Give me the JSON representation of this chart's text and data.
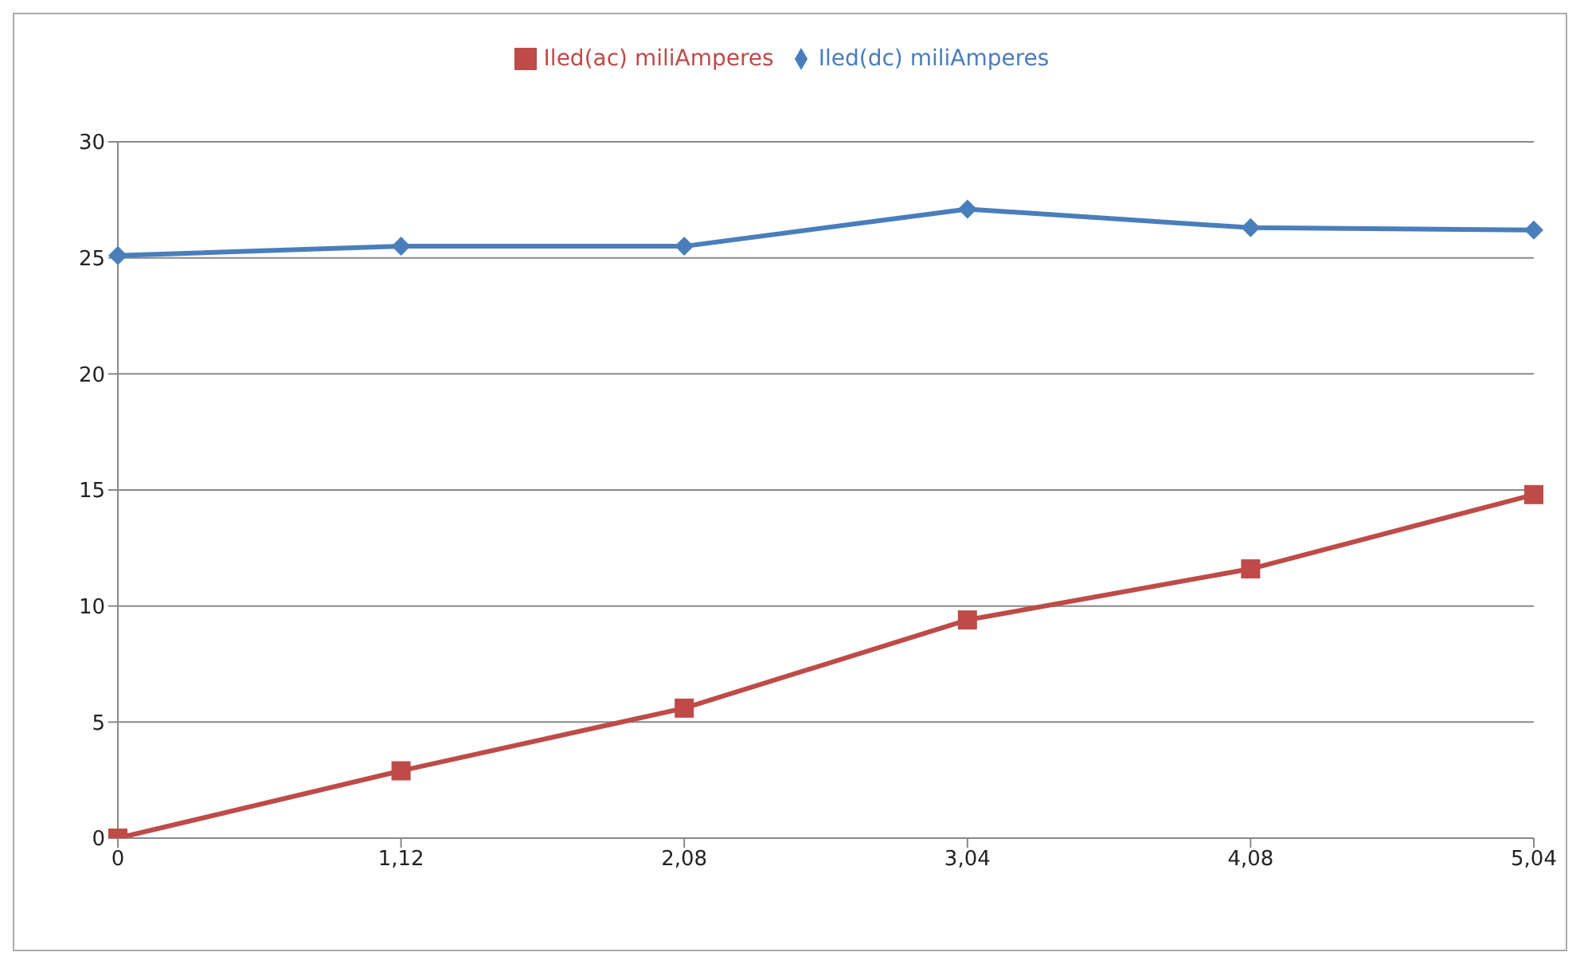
{
  "chart_data": {
    "type": "line",
    "categories": [
      "0",
      "1,12",
      "2,08",
      "3,04",
      "4,08",
      "5,04"
    ],
    "series": [
      {
        "name": "Iled(dc) miliAmperes",
        "color": "#4a7ebb",
        "marker": "diamond",
        "values": [
          25.1,
          25.5,
          25.5,
          27.1,
          26.3,
          26.2
        ]
      },
      {
        "name": "Iled(ac) miliAmperes",
        "color": "#be4b48",
        "marker": "square",
        "values": [
          0,
          2.9,
          5.6,
          9.4,
          11.6,
          14.8
        ]
      }
    ],
    "ylim": [
      0,
      30
    ],
    "yticks": [
      0,
      5,
      10,
      15,
      20,
      25,
      30
    ],
    "grid": "y",
    "legend": "top"
  }
}
